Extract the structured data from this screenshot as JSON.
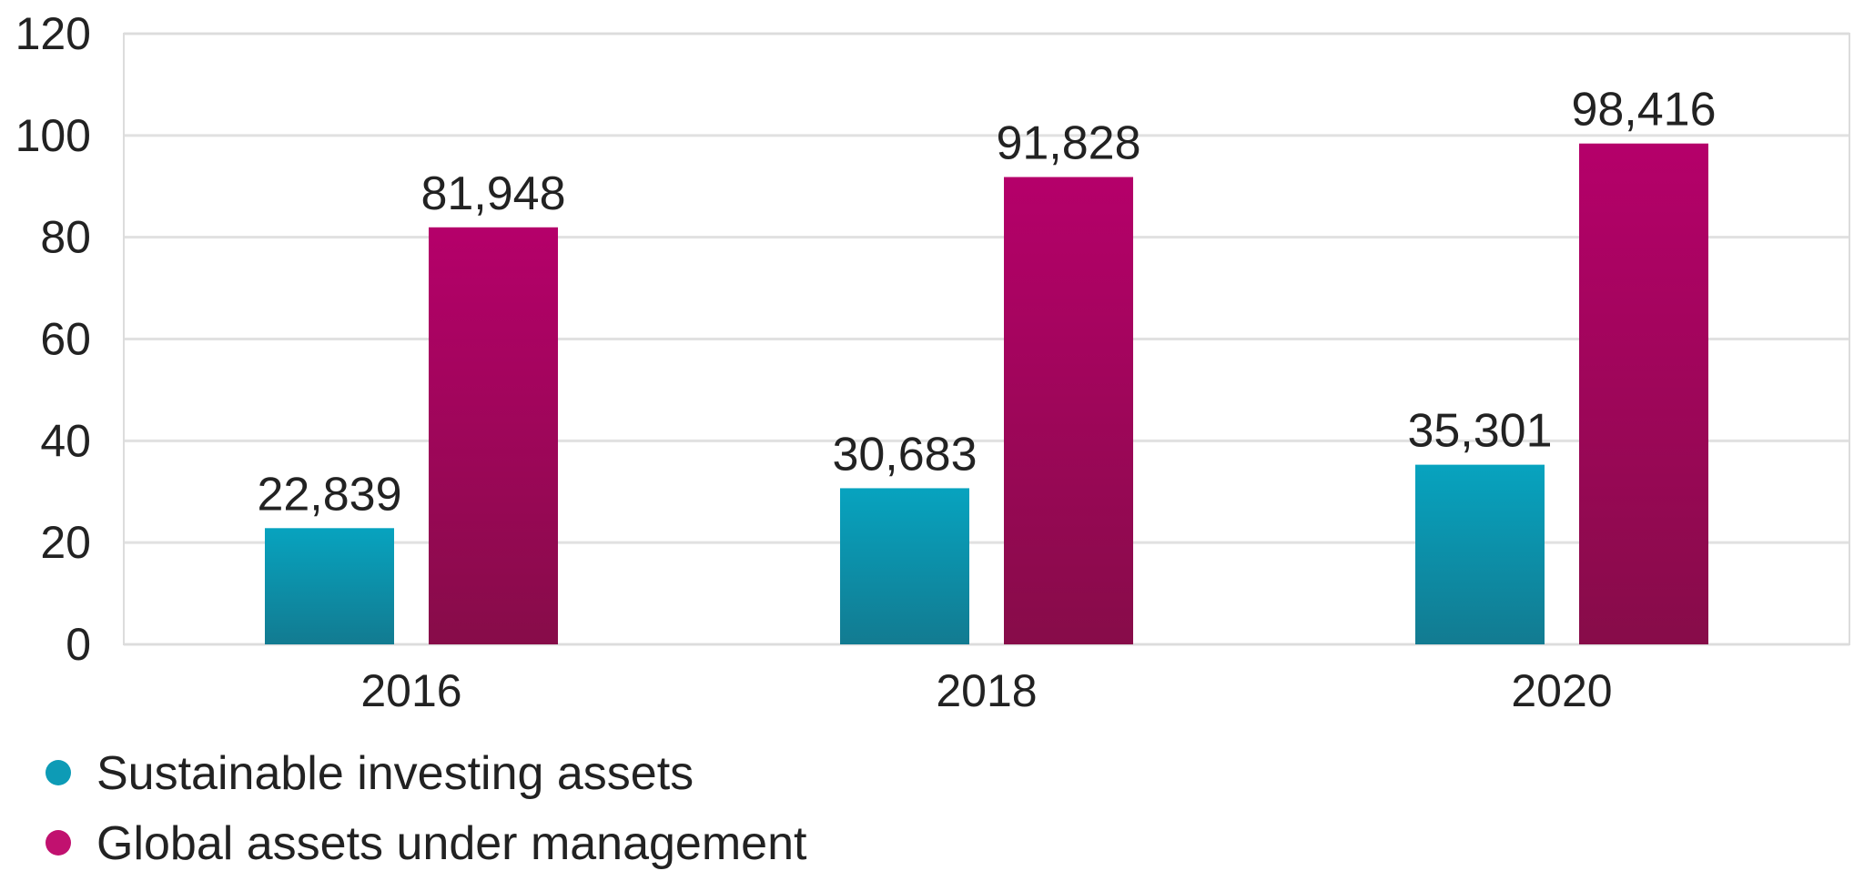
{
  "chart_data": {
    "type": "bar",
    "title": "",
    "xlabel": "",
    "ylabel": "",
    "categories": [
      "2016",
      "2018",
      "2020"
    ],
    "ylim": [
      0,
      120
    ],
    "yticks": [
      "0",
      "20",
      "40",
      "60",
      "80",
      "100",
      "120"
    ],
    "series": [
      {
        "name": "Sustainable investing assets",
        "values": [
          22.839,
          30.683,
          35.301
        ],
        "labels": [
          "22,839",
          "30,683",
          "35,301"
        ],
        "color_top": "#07a3bf",
        "color_bottom": "#127b91"
      },
      {
        "name": "Global assets under management",
        "values": [
          81.948,
          91.828,
          98.416
        ],
        "labels": [
          "81,948",
          "91,828",
          "98,416"
        ],
        "color_top": "#b5006a",
        "color_bottom": "#870c49"
      }
    ],
    "legend": {
      "position": "bottom-left",
      "items": [
        {
          "label": "Sustainable investing assets",
          "color": "#0d9bb6"
        },
        {
          "label": "Global assets under management",
          "color": "#c1116f"
        }
      ]
    },
    "grid": true,
    "grid_color": "#e1e1e1"
  }
}
